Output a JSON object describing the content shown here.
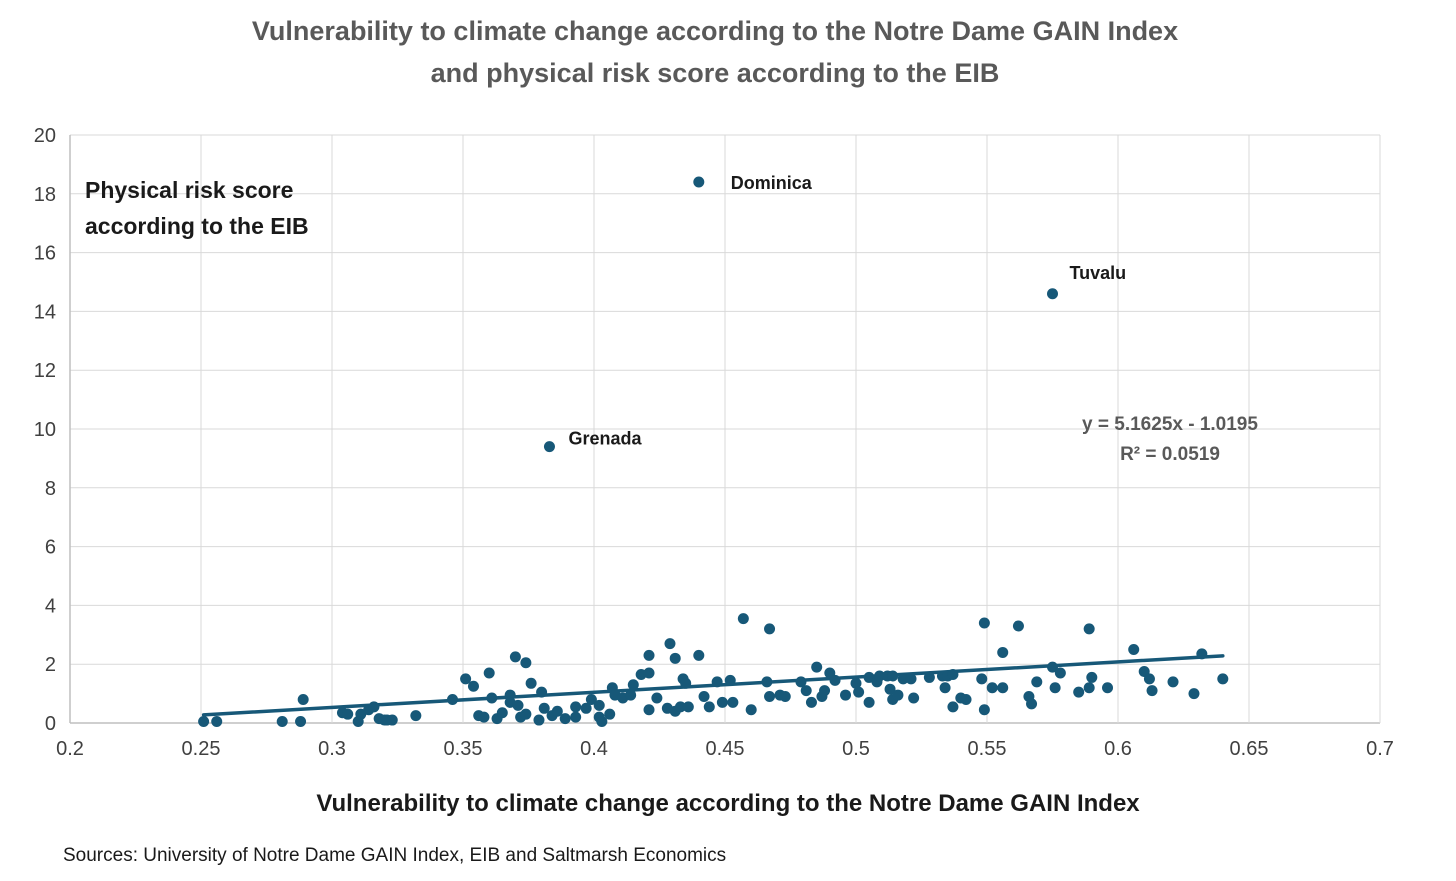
{
  "title": {
    "line1": "Vulnerability to climate change according to the Notre Dame GAIN Index",
    "line2": "and physical risk score according to the EIB"
  },
  "y_axis_label": {
    "line1": "Physical risk score",
    "line2": "according to the EIB"
  },
  "x_axis_label": "Vulnerability to climate change according to the Notre Dame GAIN Index",
  "sources": "Sources: University of Notre Dame GAIN Index, EIB and Saltmarsh Economics",
  "equation": {
    "line1": "y = 5.1625x - 1.0195",
    "line2": "R² = 0.0519"
  },
  "colors": {
    "dot": "#175878",
    "trendline": "#175878",
    "title_gray": "#595959",
    "tick_text": "#404040",
    "label_black": "#1a1a1a",
    "gridline": "#d9d9d9",
    "axis_line": "#bfbfbf"
  },
  "chart_data": {
    "type": "scatter",
    "title": "Vulnerability to climate change according to the Notre Dame GAIN Index and physical risk score according to the EIB",
    "xlabel": "Vulnerability to climate change according to the Notre Dame GAIN Index",
    "ylabel": "Physical risk score according to the EIB",
    "xlim": [
      0.2,
      0.7
    ],
    "ylim": [
      0,
      20
    ],
    "x_ticks": [
      0.2,
      0.25,
      0.3,
      0.35,
      0.4,
      0.45,
      0.5,
      0.55,
      0.6,
      0.65,
      0.7
    ],
    "x_tick_labels": [
      "0.2",
      "0.25",
      "0.3",
      "0.35",
      "0.4",
      "0.45",
      "0.5",
      "0.55",
      "0.6",
      "0.65",
      "0.7"
    ],
    "y_ticks": [
      0,
      2,
      4,
      6,
      8,
      10,
      12,
      14,
      16,
      18,
      20
    ],
    "y_tick_labels": [
      "0",
      "2",
      "4",
      "6",
      "8",
      "10",
      "12",
      "14",
      "16",
      "18",
      "20"
    ],
    "grid": true,
    "legend": "none",
    "trendline": {
      "equation": "y = 5.1625x - 1.0195",
      "r_squared": 0.0519,
      "slope": 5.1625,
      "intercept": -1.0195,
      "x_start": 0.251,
      "x_end": 0.64
    },
    "labeled_points": [
      {
        "name": "Dominica",
        "x": 0.44,
        "y": 18.4
      },
      {
        "name": "Tuvalu",
        "x": 0.575,
        "y": 14.6
      },
      {
        "name": "Grenada",
        "x": 0.383,
        "y": 9.4
      }
    ],
    "points": [
      [
        0.251,
        0.05
      ],
      [
        0.256,
        0.05
      ],
      [
        0.281,
        0.05
      ],
      [
        0.288,
        0.05
      ],
      [
        0.289,
        0.8
      ],
      [
        0.304,
        0.35
      ],
      [
        0.306,
        0.3
      ],
      [
        0.31,
        0.05
      ],
      [
        0.311,
        0.3
      ],
      [
        0.314,
        0.45
      ],
      [
        0.316,
        0.55
      ],
      [
        0.318,
        0.15
      ],
      [
        0.32,
        0.1
      ],
      [
        0.321,
        0.1
      ],
      [
        0.323,
        0.1
      ],
      [
        0.332,
        0.25
      ],
      [
        0.346,
        0.8
      ],
      [
        0.351,
        1.5
      ],
      [
        0.354,
        1.25
      ],
      [
        0.356,
        0.25
      ],
      [
        0.358,
        0.2
      ],
      [
        0.36,
        1.7
      ],
      [
        0.361,
        0.85
      ],
      [
        0.363,
        0.15
      ],
      [
        0.365,
        0.35
      ],
      [
        0.368,
        0.95
      ],
      [
        0.368,
        0.7
      ],
      [
        0.37,
        2.25
      ],
      [
        0.371,
        0.6
      ],
      [
        0.372,
        0.2
      ],
      [
        0.374,
        2.05
      ],
      [
        0.374,
        0.3
      ],
      [
        0.376,
        1.35
      ],
      [
        0.379,
        0.1
      ],
      [
        0.38,
        1.05
      ],
      [
        0.381,
        0.5
      ],
      [
        0.384,
        0.25
      ],
      [
        0.386,
        0.4
      ],
      [
        0.389,
        0.15
      ],
      [
        0.393,
        0.55
      ],
      [
        0.393,
        0.2
      ],
      [
        0.397,
        0.5
      ],
      [
        0.399,
        0.8
      ],
      [
        0.402,
        0.6
      ],
      [
        0.402,
        0.2
      ],
      [
        0.403,
        0.05
      ],
      [
        0.406,
        0.3
      ],
      [
        0.407,
        1.2
      ],
      [
        0.408,
        0.95
      ],
      [
        0.411,
        0.85
      ],
      [
        0.414,
        0.95
      ],
      [
        0.415,
        1.3
      ],
      [
        0.418,
        1.65
      ],
      [
        0.421,
        2.3
      ],
      [
        0.421,
        1.7
      ],
      [
        0.421,
        0.45
      ],
      [
        0.424,
        0.85
      ],
      [
        0.428,
        0.5
      ],
      [
        0.429,
        2.7
      ],
      [
        0.431,
        2.2
      ],
      [
        0.431,
        0.4
      ],
      [
        0.433,
        0.55
      ],
      [
        0.434,
        1.5
      ],
      [
        0.435,
        1.35
      ],
      [
        0.436,
        0.55
      ],
      [
        0.44,
        2.3
      ],
      [
        0.442,
        0.9
      ],
      [
        0.444,
        0.55
      ],
      [
        0.447,
        1.4
      ],
      [
        0.449,
        0.7
      ],
      [
        0.452,
        1.45
      ],
      [
        0.453,
        0.7
      ],
      [
        0.457,
        3.55
      ],
      [
        0.46,
        0.45
      ],
      [
        0.466,
        1.4
      ],
      [
        0.467,
        3.2
      ],
      [
        0.467,
        0.9
      ],
      [
        0.471,
        0.95
      ],
      [
        0.473,
        0.9
      ],
      [
        0.479,
        1.4
      ],
      [
        0.481,
        1.1
      ],
      [
        0.483,
        0.7
      ],
      [
        0.485,
        1.9
      ],
      [
        0.487,
        0.9
      ],
      [
        0.488,
        1.1
      ],
      [
        0.49,
        1.7
      ],
      [
        0.492,
        1.45
      ],
      [
        0.496,
        0.95
      ],
      [
        0.5,
        1.35
      ],
      [
        0.501,
        1.05
      ],
      [
        0.505,
        1.55
      ],
      [
        0.505,
        0.7
      ],
      [
        0.508,
        1.4
      ],
      [
        0.509,
        1.6
      ],
      [
        0.512,
        1.6
      ],
      [
        0.513,
        1.15
      ],
      [
        0.514,
        1.6
      ],
      [
        0.514,
        0.8
      ],
      [
        0.516,
        0.95
      ],
      [
        0.518,
        1.5
      ],
      [
        0.521,
        1.5
      ],
      [
        0.522,
        0.85
      ],
      [
        0.528,
        1.55
      ],
      [
        0.533,
        1.6
      ],
      [
        0.534,
        1.2
      ],
      [
        0.535,
        1.6
      ],
      [
        0.537,
        1.65
      ],
      [
        0.537,
        0.55
      ],
      [
        0.54,
        0.85
      ],
      [
        0.542,
        0.8
      ],
      [
        0.548,
        1.5
      ],
      [
        0.549,
        3.4
      ],
      [
        0.549,
        0.45
      ],
      [
        0.552,
        1.2
      ],
      [
        0.556,
        2.4
      ],
      [
        0.556,
        1.2
      ],
      [
        0.562,
        3.3
      ],
      [
        0.566,
        0.9
      ],
      [
        0.567,
        0.65
      ],
      [
        0.569,
        1.4
      ],
      [
        0.575,
        1.9
      ],
      [
        0.576,
        1.2
      ],
      [
        0.578,
        1.7
      ],
      [
        0.585,
        1.05
      ],
      [
        0.589,
        3.2
      ],
      [
        0.589,
        1.2
      ],
      [
        0.59,
        1.55
      ],
      [
        0.596,
        1.2
      ],
      [
        0.606,
        2.5
      ],
      [
        0.61,
        1.75
      ],
      [
        0.612,
        1.5
      ],
      [
        0.613,
        1.1
      ],
      [
        0.621,
        1.4
      ],
      [
        0.629,
        1.0
      ],
      [
        0.632,
        2.35
      ],
      [
        0.64,
        1.5
      ]
    ]
  }
}
